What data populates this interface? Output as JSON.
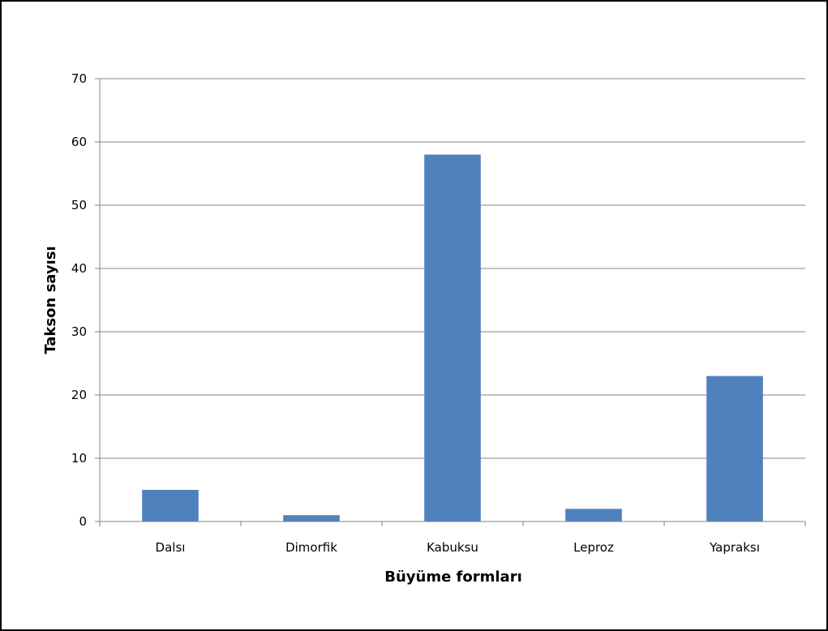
{
  "chart_data": {
    "type": "bar",
    "categories": [
      "Dalsı",
      "Dimorfik",
      "Kabuksu",
      "Leproz",
      "Yapraksı"
    ],
    "values": [
      5,
      1,
      58,
      2,
      23
    ],
    "title": "",
    "xlabel": "Büyüme formları",
    "ylabel": "Takson sayısı",
    "ylim": [
      0,
      70
    ],
    "yticks": [
      0,
      10,
      20,
      30,
      40,
      50,
      60,
      70
    ],
    "grid": true,
    "legend": "none",
    "colors": {
      "bar": "#4f81bd",
      "grid": "#868686",
      "axis": "#868686",
      "text": "#000000"
    }
  }
}
